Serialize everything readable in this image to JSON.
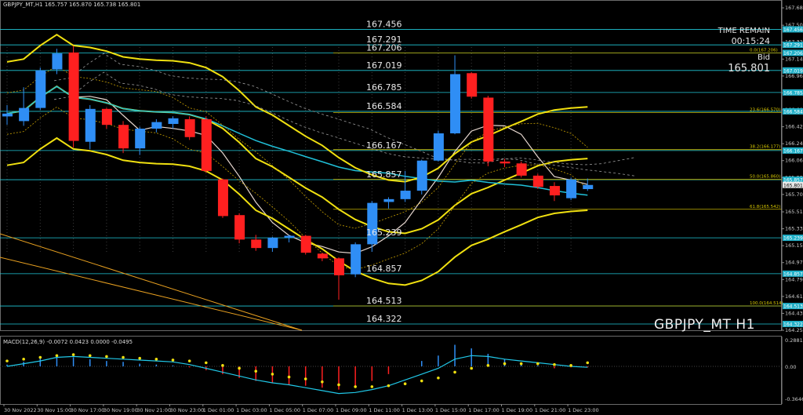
{
  "header": {
    "symbol_line": "GBPJPY_MT,H1",
    "ohlc": "165.757 165.870 165.738 165.801",
    "watermark": "GBPJPY_MT H1",
    "time_remain_label": "TIME REMAIN",
    "time_remain_value": "00:15:24",
    "bid_label": "Bid",
    "bid_value": "165.801"
  },
  "macd": {
    "title": "MACD(12,26,9) -0.0072 0.0423 0.0000 -0.0495",
    "axis_labels": [
      "0.2881",
      "0.00",
      "-0.3646"
    ]
  },
  "colors": {
    "bull": "#2f8ef5",
    "bear": "#ff2020",
    "level_line": "#20c8d8",
    "band": "#f0e010",
    "ma_white": "#e8d8d0",
    "background": "#000000"
  },
  "chart_data": {
    "type": "candlestick",
    "ylim": [
      164.255,
      167.685
    ],
    "x_tick_labels": [
      "30 Nov 2022",
      "30 Nov 15:00",
      "30 Nov 17:00",
      "30 Nov 19:00",
      "30 Nov 21:00",
      "30 Nov 23:00",
      "1 Dec 01:00",
      "1 Dec 03:00",
      "1 Dec 05:00",
      "1 Dec 07:00",
      "1 Dec 09:00",
      "1 Dec 11:00",
      "1 Dec 13:00",
      "1 Dec 15:00",
      "1 Dec 17:00",
      "1 Dec 19:00",
      "1 Dec 21:00",
      "1 Dec 23:00"
    ],
    "y_tick_labels": [
      "167.685",
      "167.500",
      "167.320",
      "167.140",
      "166.960",
      "166.780",
      "166.600",
      "166.420",
      "166.240",
      "166.060",
      "165.880",
      "165.700",
      "165.515",
      "165.335",
      "165.155",
      "164.975",
      "164.795",
      "164.615",
      "164.435",
      "164.255"
    ],
    "candles": [
      {
        "o": 166.53,
        "h": 166.65,
        "l": 166.44,
        "c": 166.56
      },
      {
        "o": 166.48,
        "h": 166.84,
        "l": 166.43,
        "c": 166.62
      },
      {
        "o": 166.62,
        "h": 167.05,
        "l": 166.6,
        "c": 167.02
      },
      {
        "o": 167.03,
        "h": 167.25,
        "l": 166.98,
        "c": 167.2
      },
      {
        "o": 167.21,
        "h": 167.28,
        "l": 166.2,
        "c": 166.27
      },
      {
        "o": 166.26,
        "h": 166.65,
        "l": 166.18,
        "c": 166.61
      },
      {
        "o": 166.61,
        "h": 166.62,
        "l": 166.4,
        "c": 166.44
      },
      {
        "o": 166.44,
        "h": 166.48,
        "l": 166.14,
        "c": 166.19
      },
      {
        "o": 166.19,
        "h": 166.42,
        "l": 166.12,
        "c": 166.4
      },
      {
        "o": 166.4,
        "h": 166.5,
        "l": 166.36,
        "c": 166.47
      },
      {
        "o": 166.45,
        "h": 166.53,
        "l": 166.4,
        "c": 166.51
      },
      {
        "o": 166.5,
        "h": 166.53,
        "l": 166.28,
        "c": 166.31
      },
      {
        "o": 166.5,
        "h": 166.53,
        "l": 165.93,
        "c": 165.95
      },
      {
        "o": 165.86,
        "h": 165.87,
        "l": 165.45,
        "c": 165.47
      },
      {
        "o": 165.48,
        "h": 165.5,
        "l": 165.18,
        "c": 165.22
      },
      {
        "o": 165.22,
        "h": 165.27,
        "l": 165.1,
        "c": 165.13
      },
      {
        "o": 165.13,
        "h": 165.25,
        "l": 165.09,
        "c": 165.24
      },
      {
        "o": 165.24,
        "h": 165.27,
        "l": 165.19,
        "c": 165.26
      },
      {
        "o": 165.26,
        "h": 165.27,
        "l": 165.06,
        "c": 165.08
      },
      {
        "o": 165.07,
        "h": 165.08,
        "l": 164.99,
        "c": 165.02
      },
      {
        "o": 165.02,
        "h": 165.03,
        "l": 164.58,
        "c": 164.84
      },
      {
        "o": 164.85,
        "h": 165.19,
        "l": 164.82,
        "c": 165.17
      },
      {
        "o": 165.17,
        "h": 165.63,
        "l": 165.09,
        "c": 165.61
      },
      {
        "o": 165.62,
        "h": 165.67,
        "l": 165.55,
        "c": 165.65
      },
      {
        "o": 165.65,
        "h": 165.95,
        "l": 165.62,
        "c": 165.74
      },
      {
        "o": 165.74,
        "h": 166.07,
        "l": 165.7,
        "c": 166.06
      },
      {
        "o": 166.06,
        "h": 166.38,
        "l": 166.05,
        "c": 166.35
      },
      {
        "o": 166.35,
        "h": 167.18,
        "l": 166.34,
        "c": 166.98
      },
      {
        "o": 166.99,
        "h": 167.0,
        "l": 166.72,
        "c": 166.74
      },
      {
        "o": 166.73,
        "h": 166.75,
        "l": 166.0,
        "c": 166.05
      },
      {
        "o": 166.05,
        "h": 166.08,
        "l": 165.99,
        "c": 166.03
      },
      {
        "o": 166.03,
        "h": 166.05,
        "l": 165.88,
        "c": 165.9
      },
      {
        "o": 165.9,
        "h": 165.92,
        "l": 165.76,
        "c": 165.78
      },
      {
        "o": 165.79,
        "h": 165.83,
        "l": 165.63,
        "c": 165.69
      },
      {
        "o": 165.66,
        "h": 165.88,
        "l": 165.64,
        "c": 165.86
      },
      {
        "o": 165.757,
        "h": 165.87,
        "l": 165.738,
        "c": 165.801
      }
    ],
    "levels": [
      {
        "price": 167.456,
        "label": "167.456"
      },
      {
        "price": 167.291,
        "label": "167.291"
      },
      {
        "price": 167.206,
        "label": "167.206"
      },
      {
        "price": 167.019,
        "label": "167.019"
      },
      {
        "price": 166.785,
        "label": "166.785"
      },
      {
        "price": 166.584,
        "label": "166.584"
      },
      {
        "price": 166.167,
        "label": "166.167"
      },
      {
        "price": 165.857,
        "label": "165.857"
      },
      {
        "price": 165.239,
        "label": "165.239"
      },
      {
        "price": 164.857,
        "label": "164.857"
      },
      {
        "price": 164.513,
        "label": "164.513"
      },
      {
        "price": 164.322,
        "label": "164.322"
      }
    ],
    "fibo": [
      {
        "price": 167.206,
        "label": "0.0(167.206)"
      },
      {
        "price": 166.57,
        "label": "23.6(166.570)"
      },
      {
        "price": 166.177,
        "label": "38.2(166.177)"
      },
      {
        "price": 165.86,
        "label": "50.0(165.860)"
      },
      {
        "price": 165.542,
        "label": "61.8(165.542)"
      },
      {
        "price": 164.514,
        "label": "100.0(164.514)"
      }
    ],
    "right_axis_markers": [
      {
        "price": 167.456,
        "label": "167.456"
      },
      {
        "price": 167.291,
        "label": "167.291"
      },
      {
        "price": 167.206,
        "label": "167.206"
      },
      {
        "price": 167.019,
        "label": "167.019"
      },
      {
        "price": 166.785,
        "label": "166.785"
      },
      {
        "price": 166.584,
        "label": "166.584"
      },
      {
        "price": 166.167,
        "label": "166.167"
      },
      {
        "price": 165.857,
        "label": "165.857"
      },
      {
        "price": 165.801,
        "label": "165.801"
      },
      {
        "price": 165.239,
        "label": "165.239"
      },
      {
        "price": 164.857,
        "label": "164.857"
      },
      {
        "price": 164.513,
        "label": "164.513"
      },
      {
        "price": 164.322,
        "label": "164.322"
      }
    ],
    "macd_hist": [
      0.02,
      0.05,
      0.09,
      0.12,
      0.1,
      0.08,
      0.06,
      0.05,
      0.03,
      0.02,
      0.01,
      -0.01,
      -0.04,
      -0.08,
      -0.12,
      -0.15,
      -0.17,
      -0.19,
      -0.2,
      -0.22,
      -0.24,
      -0.22,
      -0.15,
      -0.08,
      0.0,
      0.06,
      0.12,
      0.24,
      0.2,
      0.14,
      0.08,
      0.04,
      0.01,
      -0.02,
      -0.01,
      -0.01
    ],
    "macd_signal": [
      0.06,
      0.08,
      0.1,
      0.12,
      0.13,
      0.12,
      0.11,
      0.1,
      0.09,
      0.08,
      0.07,
      0.06,
      0.04,
      0.01,
      -0.02,
      -0.05,
      -0.08,
      -0.11,
      -0.13,
      -0.16,
      -0.19,
      -0.21,
      -0.21,
      -0.2,
      -0.18,
      -0.15,
      -0.12,
      -0.06,
      -0.02,
      0.01,
      0.03,
      0.03,
      0.03,
      0.02,
      0.01,
      0.04
    ],
    "macd_line": [
      0.0,
      0.03,
      0.06,
      0.1,
      0.11,
      0.1,
      0.09,
      0.08,
      0.07,
      0.06,
      0.05,
      0.02,
      -0.02,
      -0.06,
      -0.1,
      -0.14,
      -0.17,
      -0.19,
      -0.22,
      -0.25,
      -0.28,
      -0.27,
      -0.24,
      -0.2,
      -0.14,
      -0.08,
      -0.02,
      0.08,
      0.12,
      0.11,
      0.08,
      0.06,
      0.04,
      0.02,
      0.0,
      -0.01
    ]
  }
}
